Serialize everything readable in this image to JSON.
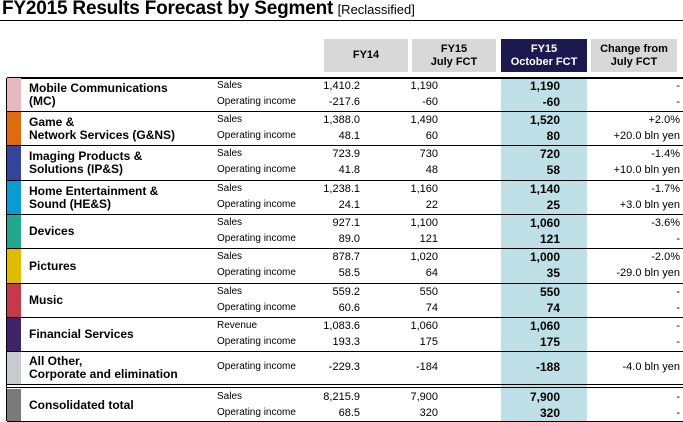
{
  "title": {
    "main": "FY2015  Results Forecast by Segment",
    "sub": "[Reclassified]"
  },
  "columns": [
    {
      "label": "FY14"
    },
    {
      "label": "FY15\nJuly FCT"
    },
    {
      "label": "FY15\nOctober FCT"
    },
    {
      "label": "Change from\nJuly FCT"
    }
  ],
  "colors": {
    "header_bg": "#d8d8d8",
    "highlight_header": "#1c1850",
    "highlight_col": "#bfe0e6"
  },
  "segments": [
    {
      "name": "Mobile Communications\n(MC)",
      "color": "#e8b8c0",
      "rows": [
        {
          "metric": "Sales",
          "fy14": "1,410.2",
          "july": "1,190",
          "oct": "1,190",
          "change": "-"
        },
        {
          "metric": "Operating income",
          "fy14": "-217.6",
          "july": "-60",
          "oct": "-60",
          "change": "-"
        }
      ]
    },
    {
      "name": "Game &\nNetwork Services (G&NS)",
      "color": "#e06a10",
      "rows": [
        {
          "metric": "Sales",
          "fy14": "1,388.0",
          "july": "1,490",
          "oct": "1,520",
          "change": "+2.0%"
        },
        {
          "metric": "Operating income",
          "fy14": "48.1",
          "july": "60",
          "oct": "80",
          "change": "+20.0 bln yen"
        }
      ]
    },
    {
      "name": "Imaging Products &\nSolutions (IP&S)",
      "color": "#34449a",
      "rows": [
        {
          "metric": "Sales",
          "fy14": "723.9",
          "july": "730",
          "oct": "720",
          "change": "-1.4%"
        },
        {
          "metric": "Operating income",
          "fy14": "41.8",
          "july": "48",
          "oct": "58",
          "change": "+10.0 bln yen"
        }
      ]
    },
    {
      "name": "Home Entertainment &\nSound (HE&S)",
      "color": "#0a9ad6",
      "rows": [
        {
          "metric": "Sales",
          "fy14": "1,238.1",
          "july": "1,160",
          "oct": "1,140",
          "change": "-1.7%"
        },
        {
          "metric": "Operating income",
          "fy14": "24.1",
          "july": "22",
          "oct": "25",
          "change": "+3.0 bln yen"
        }
      ]
    },
    {
      "name": "Devices",
      "color": "#22a88c",
      "rows": [
        {
          "metric": "Sales",
          "fy14": "927.1",
          "july": "1,100",
          "oct": "1,060",
          "change": "-3.6%"
        },
        {
          "metric": "Operating income",
          "fy14": "89.0",
          "july": "121",
          "oct": "121",
          "change": "-"
        }
      ]
    },
    {
      "name": "Pictures",
      "color": "#e0bc00",
      "rows": [
        {
          "metric": "Sales",
          "fy14": "878.7",
          "july": "1,020",
          "oct": "1,000",
          "change": "-2.0%"
        },
        {
          "metric": "Operating income",
          "fy14": "58.5",
          "july": "64",
          "oct": "35",
          "change": "-29.0 bln yen"
        }
      ]
    },
    {
      "name": "Music",
      "color": "#c8384c",
      "rows": [
        {
          "metric": "Sales",
          "fy14": "559.2",
          "july": "550",
          "oct": "550",
          "change": "-"
        },
        {
          "metric": "Operating income",
          "fy14": "60.6",
          "july": "74",
          "oct": "74",
          "change": "-"
        }
      ]
    },
    {
      "name": "Financial Services",
      "color": "#3e2468",
      "rows": [
        {
          "metric": "Revenue",
          "fy14": "1,083.6",
          "july": "1,060",
          "oct": "1,060",
          "change": "-"
        },
        {
          "metric": "Operating income",
          "fy14": "193.3",
          "july": "175",
          "oct": "175",
          "change": "-"
        }
      ]
    },
    {
      "name": "All Other,\nCorporate and elimination",
      "color": "#c8cccc",
      "rows": [
        {
          "metric": "Operating income",
          "fy14": "-229.3",
          "july": "-184",
          "oct": "-188",
          "change": "-4.0 bln yen"
        }
      ]
    },
    {
      "name": "Consolidated total",
      "color": "#7a7a7a",
      "rows": [
        {
          "metric": "Sales",
          "fy14": "8,215.9",
          "july": "7,900",
          "oct": "7,900",
          "change": "-"
        },
        {
          "metric": "Operating income",
          "fy14": "68.5",
          "july": "320",
          "oct": "320",
          "change": "-"
        }
      ]
    }
  ]
}
